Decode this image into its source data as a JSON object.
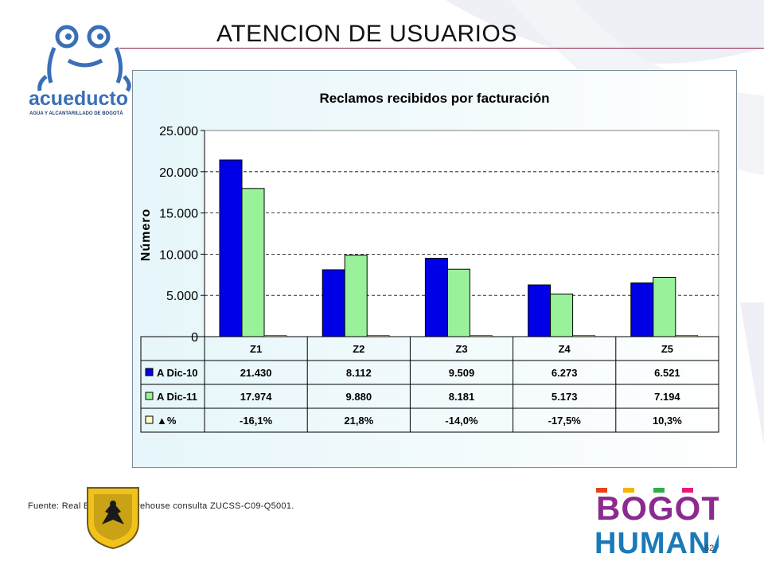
{
  "slide": {
    "title": "ATENCION DE USUARIOS",
    "source": "Fuente: Real Business Warehouse consulta ZUCSS-C09-Q5001.",
    "page_number": "62"
  },
  "logos": {
    "acueducto_name": "acueducto",
    "acueducto_subtitle": "AGUA Y ALCANTARILLADO DE BOGOTÁ",
    "bogota_line1": "BOGOTÁ",
    "bogota_line2": "HUMANA"
  },
  "colors": {
    "series1": "#0000e6",
    "series2": "#99f299",
    "series3": "#ffffcc",
    "accent_line": "#8a1f4a"
  },
  "chart_data": {
    "type": "bar",
    "title": "Reclamos recibidos por facturación",
    "ylabel": "Número",
    "xlabel": "",
    "ylim": [
      0,
      25000
    ],
    "yticks": [
      "0",
      "5.000",
      "10.000",
      "15.000",
      "20.000",
      "25.000"
    ],
    "ytick_values": [
      0,
      5000,
      10000,
      15000,
      20000,
      25000
    ],
    "grid": "horizontal dashed",
    "categories": [
      "Z1",
      "Z2",
      "Z3",
      "Z4",
      "Z5"
    ],
    "series": [
      {
        "name": "A Dic-10",
        "values": [
          21430,
          8112,
          9509,
          6273,
          6521
        ],
        "labels": [
          "21.430",
          "8.112",
          "9.509",
          "6.273",
          "6.521"
        ]
      },
      {
        "name": "A Dic-11",
        "values": [
          17974,
          9880,
          8181,
          5173,
          7194
        ],
        "labels": [
          "17.974",
          "9.880",
          "8.181",
          "5.173",
          "7.194"
        ]
      },
      {
        "name": "▲%",
        "values": [
          -16.1,
          21.8,
          -14.0,
          -17.5,
          10.3
        ],
        "labels": [
          "-16,1%",
          "21,8%",
          "-14,0%",
          "-17,5%",
          "10,3%"
        ]
      }
    ]
  }
}
